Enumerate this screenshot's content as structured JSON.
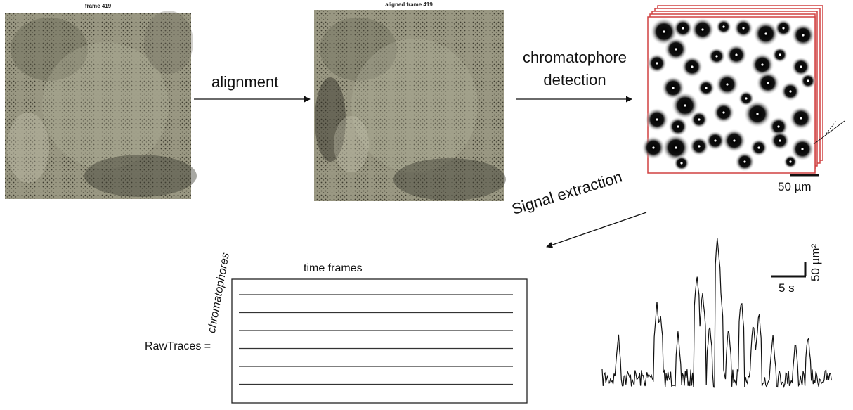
{
  "panels": {
    "raw_title": "frame 419",
    "aligned_title": "aligned frame 419"
  },
  "steps": {
    "alignment": "alignment",
    "detection_line1": "chromatophore",
    "detection_line2": "detection",
    "signal_extraction": "Signal extraction"
  },
  "scalebars": {
    "detection_scale": "50 µm",
    "trace_time": "5 s",
    "trace_area": "50 µm²"
  },
  "matrix": {
    "label": "RawTraces =",
    "rows_label": "chromatophores",
    "cols_label": "time frames",
    "row_count": 6
  },
  "colors": {
    "frame_border": "#d04040",
    "tissue": "#8a8873",
    "ink": "#111111"
  }
}
